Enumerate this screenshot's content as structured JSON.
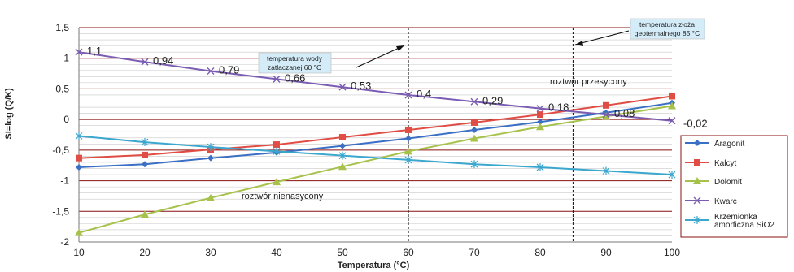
{
  "chart_data": {
    "type": "line",
    "xlabel": "Temperatura (°C)",
    "ylabel": "SI=log (Q/K)",
    "xlim": [
      10,
      100
    ],
    "ylim": [
      -2,
      1.5
    ],
    "x_ticks": [
      10,
      20,
      30,
      40,
      50,
      60,
      70,
      80,
      90,
      100
    ],
    "y_ticks": [
      1.5,
      1,
      0.5,
      0,
      -0.5,
      -1,
      -1.5,
      -2
    ],
    "y_tick_labels": [
      "1,5",
      "1",
      "0,5",
      "0",
      "-0,5",
      "-1",
      "-1,5",
      "-2"
    ],
    "grid": "horizontal",
    "legend_position": "right",
    "x": [
      10,
      20,
      30,
      40,
      50,
      60,
      70,
      80,
      90,
      100
    ],
    "series": [
      {
        "name": "Aragonit",
        "color": "#3a6fc4",
        "marker": "diamond",
        "values": [
          -0.78,
          -0.73,
          -0.63,
          -0.54,
          -0.43,
          -0.31,
          -0.17,
          -0.04,
          0.11,
          0.27
        ]
      },
      {
        "name": "Kalcyt",
        "color": "#e04d44",
        "marker": "square",
        "values": [
          -0.63,
          -0.58,
          -0.49,
          -0.41,
          -0.29,
          -0.17,
          -0.05,
          0.08,
          0.23,
          0.38
        ]
      },
      {
        "name": "Dolomit",
        "color": "#a6c24a",
        "marker": "triangle",
        "values": [
          -1.85,
          -1.55,
          -1.28,
          -1.02,
          -0.77,
          -0.52,
          -0.31,
          -0.12,
          0.05,
          0.22
        ]
      },
      {
        "name": "Kwarc",
        "color": "#7b5cb3",
        "marker": "x",
        "values": [
          1.1,
          0.94,
          0.79,
          0.66,
          0.53,
          0.4,
          0.29,
          0.18,
          0.08,
          -0.02
        ]
      },
      {
        "name": "Krzemionka amorficzna SiO2",
        "name_lines": [
          "Krzemionka",
          "amorficzna SiO2"
        ],
        "color": "#3ba7cf",
        "marker": "star",
        "values": [
          -0.27,
          -0.37,
          -0.45,
          -0.52,
          -0.59,
          -0.66,
          -0.73,
          -0.78,
          -0.84,
          -0.9
        ]
      }
    ],
    "data_labels": [
      {
        "series": "Kwarc",
        "labels": [
          "1,1",
          "0,94",
          "0,79",
          "0,66",
          "0,53",
          "0,4",
          "0,29",
          "0,18",
          "0,08",
          "-0,02"
        ]
      }
    ],
    "annotations": {
      "supersaturated": "roztwór przesycony",
      "unsaturated": "roztwór nienasycony",
      "injected_water": [
        "temperatura wody",
        "zatłaczanej 60 °C"
      ],
      "reservoir": [
        "temperatura złoża",
        "geotermalnego 85 °C"
      ]
    }
  }
}
